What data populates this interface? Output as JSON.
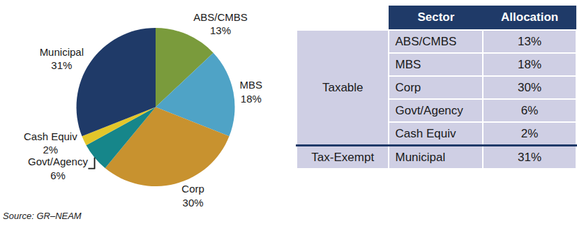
{
  "chart_data": {
    "type": "pie",
    "categories": [
      "ABS/CMBS",
      "MBS",
      "Corp",
      "Cash Equiv",
      "Govt/Agency",
      "Municipal"
    ],
    "values": [
      13,
      18,
      30,
      2,
      6,
      31
    ],
    "value_labels": [
      "13%",
      "18%",
      "30%",
      "2%",
      "6%",
      "31%"
    ],
    "colors": [
      "#7a9b3c",
      "#4fa3c6",
      "#c8922f",
      "#e3c62a",
      "#16868a",
      "#1f3a68"
    ],
    "data_labels": true
  },
  "source": "Source: GR–NEAM",
  "table": {
    "header": [
      "Sector",
      "Allocation"
    ],
    "groups": [
      {
        "name": "Taxable",
        "rows": [
          [
            "ABS/CMBS",
            "13%"
          ],
          [
            "MBS",
            "18%"
          ],
          [
            "Corp",
            "30%"
          ],
          [
            "Govt/Agency",
            "6%"
          ],
          [
            "Cash Equiv",
            "2%"
          ]
        ]
      },
      {
        "name": "Tax-Exempt",
        "rows": [
          [
            "Municipal",
            "31%"
          ]
        ]
      }
    ]
  }
}
